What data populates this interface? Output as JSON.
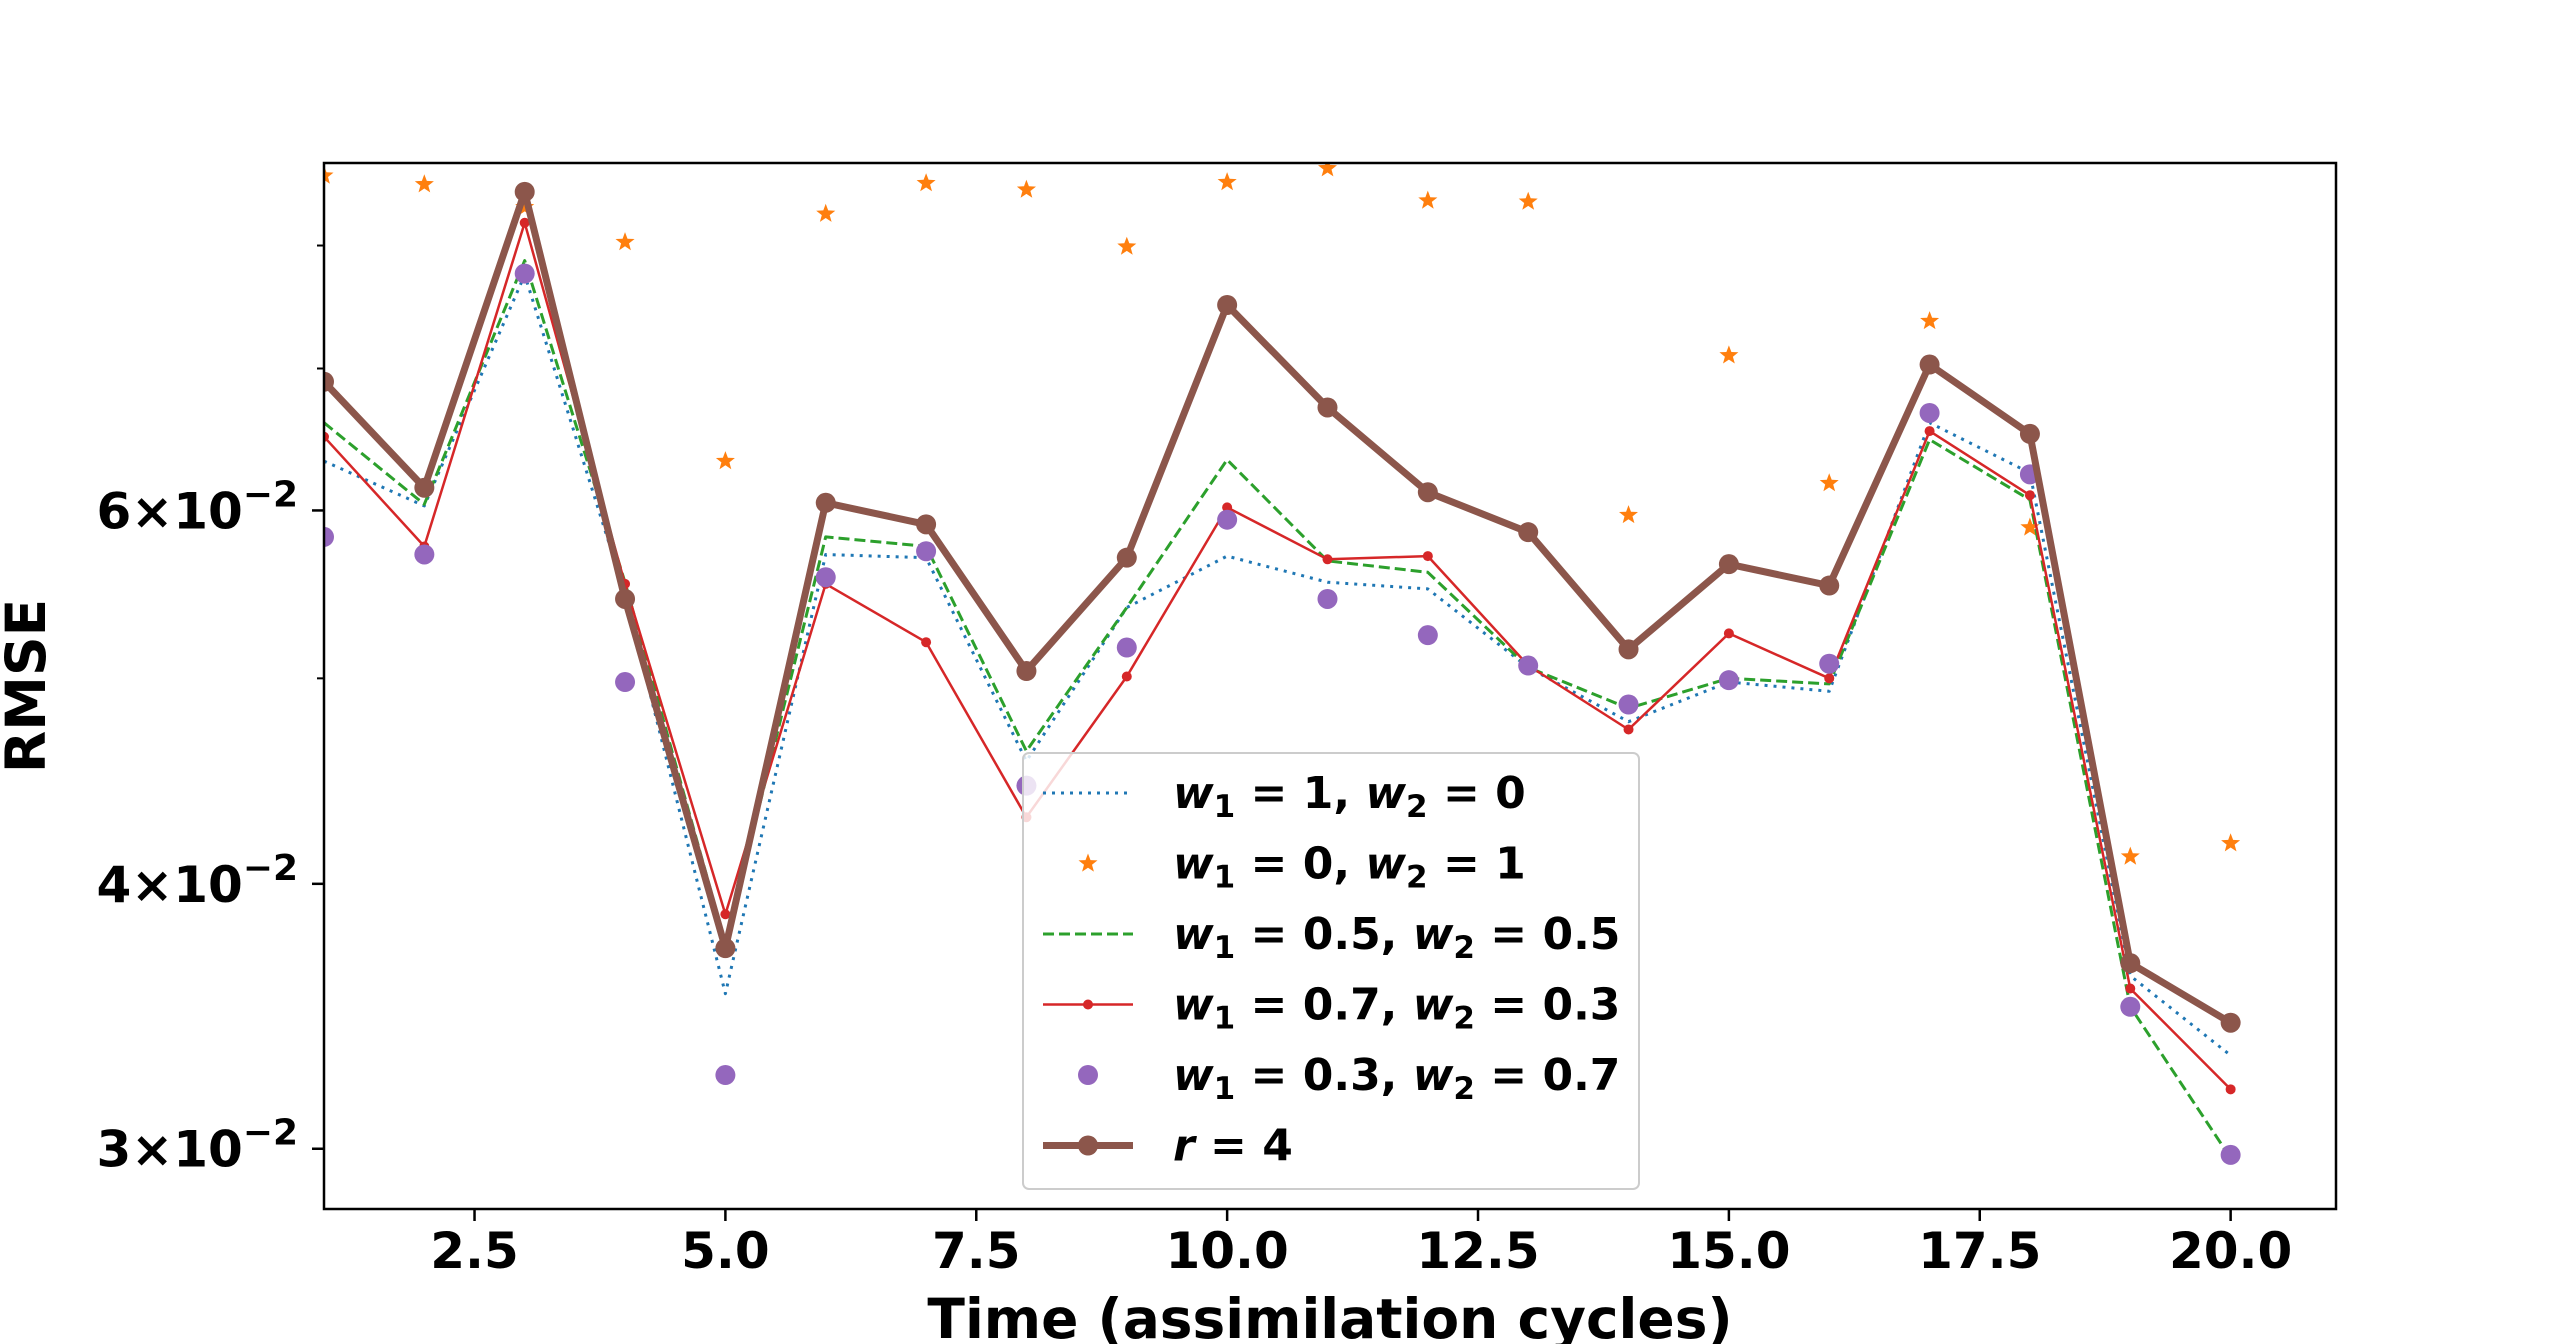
{
  "chart_data": {
    "type": "line",
    "xlabel": "Time (assimilation cycles)",
    "ylabel": "RMSE",
    "y_scale": "log",
    "xlim": [
      1,
      21.05
    ],
    "ylim": [
      0.0281,
      0.0875
    ],
    "x_ticks": [
      2.5,
      5.0,
      7.5,
      10.0,
      12.5,
      15.0,
      17.5,
      20.0
    ],
    "x_tick_labels": [
      "2.5",
      "5.0",
      "7.5",
      "10.0",
      "12.5",
      "15.0",
      "17.5",
      "20.0"
    ],
    "y_ticks": [
      {
        "value": 0.03,
        "mantissa": "3",
        "base": "10",
        "exp": "−2"
      },
      {
        "value": 0.04,
        "mantissa": "4",
        "base": "10",
        "exp": "−2"
      },
      {
        "value": 0.06,
        "mantissa": "6",
        "base": "10",
        "exp": "−2"
      }
    ],
    "y_minor_ticks": [
      0.05,
      0.07,
      0.08
    ],
    "legend_position": "lower-center",
    "x": [
      1,
      2,
      3,
      4,
      5,
      6,
      7,
      8,
      9,
      10,
      11,
      12,
      13,
      14,
      15,
      16,
      17,
      18,
      19,
      20
    ],
    "series": [
      {
        "name": "w1=1, w2=0",
        "legend_label": {
          "a": "w",
          "a_sub": "1",
          "a_val": " = 1, ",
          "b": "w",
          "b_sub": "2",
          "b_val": " = 0"
        },
        "color": "#1f77b4",
        "style": "dotted",
        "marker": "none",
        "linewidth": 3,
        "values": [
          0.0633,
          0.0603,
          0.0775,
          0.0548,
          0.0355,
          0.0572,
          0.057,
          0.0457,
          0.054,
          0.0571,
          0.0555,
          0.0551,
          0.0506,
          0.0477,
          0.0498,
          0.0493,
          0.066,
          0.0625,
          0.0362,
          0.0332
        ]
      },
      {
        "name": "w1=0, w2=1",
        "legend_label": {
          "a": "w",
          "a_sub": "1",
          "a_val": " = 0, ",
          "b": "w",
          "b_sub": "2",
          "b_val": " = 1"
        },
        "color": "#ff7f0e",
        "style": "none",
        "marker": "star",
        "linewidth": 0,
        "values": [
          0.0863,
          0.0855,
          0.0834,
          0.0803,
          0.0633,
          0.0828,
          0.0856,
          0.085,
          0.0799,
          0.0857,
          0.087,
          0.084,
          0.0839,
          0.0597,
          0.071,
          0.0618,
          0.0737,
          0.0589,
          0.0412,
          0.0418
        ]
      },
      {
        "name": "w1=0.5, w2=0.5",
        "legend_label": {
          "a": "w",
          "a_sub": "1",
          "a_val": " = 0.5, ",
          "b": "w",
          "b_sub": "2",
          "b_val": " = 0.5"
        },
        "color": "#2ca02c",
        "style": "dashed",
        "marker": "none",
        "linewidth": 3,
        "values": [
          0.066,
          0.0604,
          0.0787,
          0.0555,
          0.0375,
          0.0583,
          0.0577,
          0.0462,
          0.054,
          0.0634,
          0.0568,
          0.0561,
          0.0506,
          0.0484,
          0.05,
          0.0497,
          0.0648,
          0.0607,
          0.035,
          0.0297
        ]
      },
      {
        "name": "w1=0.7, w2=0.3",
        "legend_label": {
          "a": "w",
          "a_sub": "1",
          "a_val": " = 0.7, ",
          "b": "w",
          "b_sub": "2",
          "b_val": " = 0.3"
        },
        "color": "#d62728",
        "style": "solid",
        "marker": "small-dot",
        "linewidth": 2.5,
        "values": [
          0.065,
          0.0577,
          0.082,
          0.0554,
          0.0387,
          0.0554,
          0.052,
          0.043,
          0.0501,
          0.0602,
          0.0569,
          0.0571,
          0.0507,
          0.0473,
          0.0525,
          0.05,
          0.0654,
          0.061,
          0.0357,
          0.032
        ]
      },
      {
        "name": "w1=0.3, w2=0.7",
        "legend_label": {
          "a": "w",
          "a_sub": "1",
          "a_val": " = 0.3, ",
          "b": "w",
          "b_sub": "2",
          "b_val": " = 0.7"
        },
        "color": "#9467bd",
        "style": "none",
        "marker": "circle",
        "linewidth": 0,
        "values": [
          0.0583,
          0.0572,
          0.0776,
          0.0498,
          0.0325,
          0.0558,
          0.0574,
          0.0445,
          0.0517,
          0.0594,
          0.0545,
          0.0524,
          0.0507,
          0.0486,
          0.0499,
          0.0508,
          0.0667,
          0.0624,
          0.035,
          0.0298
        ]
      },
      {
        "name": "r=4",
        "legend_label": {
          "a": "r",
          "a_sub": "",
          "a_val": " = 4",
          "b": "",
          "b_sub": "",
          "b_val": ""
        },
        "color": "#8c564b",
        "style": "solid",
        "marker": "circle",
        "linewidth": 7,
        "values": [
          0.069,
          0.0615,
          0.0848,
          0.0545,
          0.0373,
          0.0605,
          0.0591,
          0.0504,
          0.057,
          0.075,
          0.0671,
          0.0612,
          0.0586,
          0.0516,
          0.0566,
          0.0553,
          0.0703,
          0.0652,
          0.0367,
          0.0344
        ]
      }
    ]
  }
}
